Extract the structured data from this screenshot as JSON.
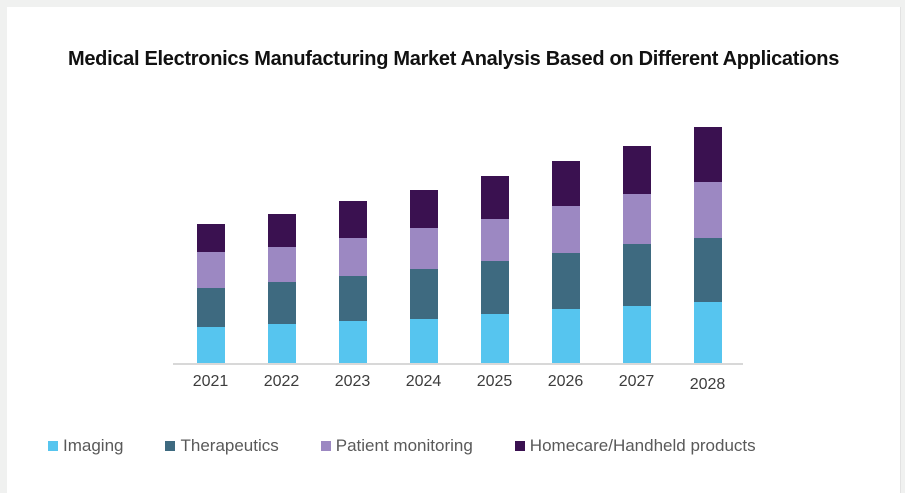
{
  "page": {
    "title": "Medical Electronics Manufacturing Market Analysis Based on Different Applications"
  },
  "chart_data": {
    "type": "bar",
    "stacked": true,
    "title": "Medical Electronics Manufacturing Market Analysis Based on Different Applications",
    "xlabel": "",
    "ylabel": "",
    "categories": [
      "2021",
      "2022",
      "2023",
      "2024",
      "2025",
      "2026",
      "2027",
      "2028"
    ],
    "series": [
      {
        "name": "Imaging",
        "color": "#56C5EF",
        "values": [
          36,
          39.5,
          42.5,
          44.5,
          49.5,
          54,
          57.5,
          61.5
        ]
      },
      {
        "name": "Therapeutics",
        "color": "#3E6A80",
        "values": [
          39,
          42,
          44.5,
          50,
          52.5,
          56.5,
          61.5,
          64
        ]
      },
      {
        "name": "Patient monitoring",
        "color": "#9C88C2",
        "values": [
          36,
          35,
          38.5,
          41,
          42.5,
          47,
          50,
          56
        ]
      },
      {
        "name": "Homecare/Handheld products",
        "color": "#3A1150",
        "values": [
          28.5,
          33,
          37,
          38,
          42.5,
          45,
          48.5,
          54.5
        ]
      }
    ],
    "totals": [
      139.5,
      149.5,
      162.5,
      173.5,
      187,
      202.5,
      217.5,
      236
    ],
    "values_estimated": true,
    "y_axis_visible": false,
    "gridlines": false,
    "legend_position": "bottom",
    "axis_line_color": "#d8d8d8"
  }
}
